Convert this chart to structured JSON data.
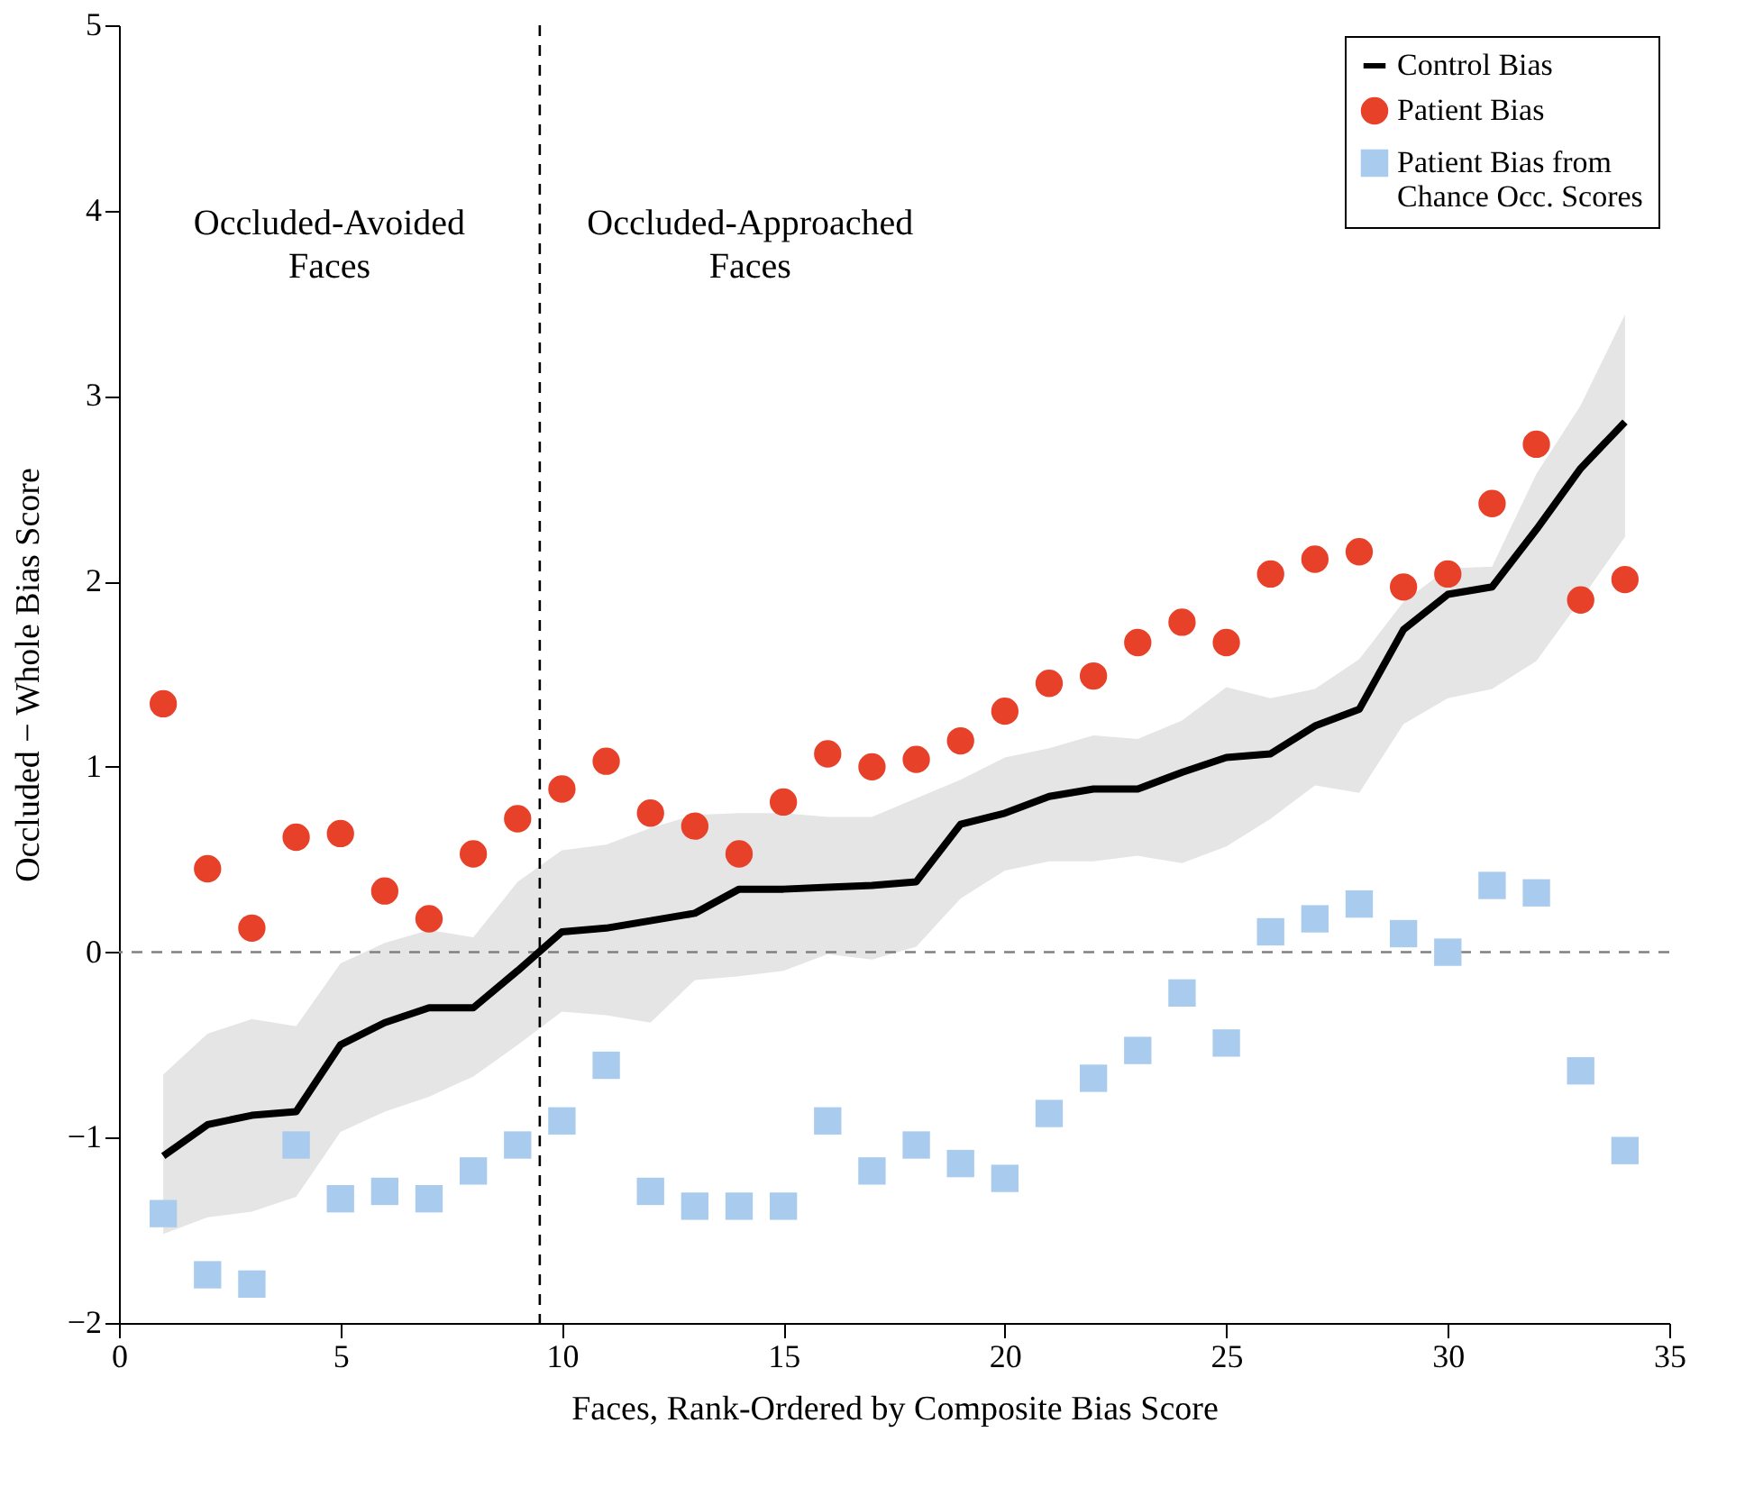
{
  "chart_data": {
    "type": "line",
    "xlabel": "Faces, Rank-Ordered by Composite Bias Score",
    "ylabel": "Occluded − Whole Bias Score",
    "x": [
      1,
      2,
      3,
      4,
      5,
      6,
      7,
      8,
      9,
      10,
      11,
      12,
      13,
      14,
      15,
      16,
      17,
      18,
      19,
      20,
      21,
      22,
      23,
      24,
      25,
      26,
      27,
      28,
      29,
      30,
      31,
      32,
      33,
      34
    ],
    "series": [
      {
        "name": "Control Bias",
        "color": "#000000",
        "values": [
          -1.1,
          -0.93,
          -0.88,
          -0.86,
          -0.5,
          -0.38,
          -0.3,
          -0.3,
          -0.1,
          0.11,
          0.13,
          0.17,
          0.21,
          0.34,
          0.34,
          0.35,
          0.36,
          0.38,
          0.69,
          0.75,
          0.84,
          0.88,
          0.88,
          0.97,
          1.05,
          1.07,
          1.22,
          1.31,
          1.74,
          1.93,
          1.97,
          2.28,
          2.61,
          2.86
        ],
        "lower": [
          -1.52,
          -1.43,
          -1.4,
          -1.32,
          -0.97,
          -0.86,
          -0.78,
          -0.67,
          -0.5,
          -0.32,
          -0.34,
          -0.38,
          -0.15,
          -0.13,
          -0.1,
          -0.01,
          -0.04,
          0.03,
          0.29,
          0.44,
          0.49,
          0.49,
          0.52,
          0.48,
          0.57,
          0.72,
          0.9,
          0.86,
          1.23,
          1.37,
          1.42,
          1.57,
          1.9,
          2.24
        ],
        "upper": [
          -0.66,
          -0.44,
          -0.36,
          -0.4,
          -0.06,
          0.05,
          0.12,
          0.08,
          0.38,
          0.55,
          0.58,
          0.67,
          0.74,
          0.75,
          0.75,
          0.73,
          0.73,
          0.83,
          0.93,
          1.05,
          1.1,
          1.17,
          1.15,
          1.25,
          1.43,
          1.37,
          1.42,
          1.58,
          1.89,
          2.07,
          2.08,
          2.58,
          2.95,
          3.44
        ]
      },
      {
        "name": "Patient Bias",
        "type": "scatter",
        "marker": "circle",
        "color": "#e8412a",
        "values": [
          1.34,
          0.45,
          0.13,
          0.62,
          0.64,
          0.33,
          0.18,
          0.53,
          0.72,
          0.88,
          1.03,
          0.75,
          0.68,
          0.53,
          0.81,
          1.07,
          1.0,
          1.04,
          1.14,
          1.3,
          1.45,
          1.49,
          1.67,
          1.78,
          1.67,
          2.04,
          2.12,
          2.16,
          1.97,
          2.04,
          2.42,
          2.74,
          1.9,
          2.01
        ]
      },
      {
        "name": "Patient Bias from Chance Occ. Scores",
        "type": "scatter",
        "marker": "square",
        "color": "#a9cbee",
        "values": [
          -1.41,
          -1.74,
          -1.79,
          -1.04,
          -1.33,
          -1.29,
          -1.33,
          -1.18,
          -1.04,
          -0.91,
          -0.61,
          -1.29,
          -1.37,
          -1.37,
          -1.37,
          -0.91,
          -1.18,
          -1.04,
          -1.14,
          -1.22,
          -0.87,
          -0.68,
          -0.53,
          -0.22,
          -0.49,
          0.11,
          0.18,
          0.26,
          0.1,
          0.0,
          0.36,
          0.32,
          -0.64,
          -1.07
        ]
      }
    ],
    "xlim": [
      0,
      35
    ],
    "xticks": [
      0,
      5,
      10,
      15,
      20,
      25,
      30,
      35
    ],
    "ylim": [
      -2,
      5
    ],
    "yticks": [
      -2,
      -1,
      0,
      1,
      2,
      3,
      4,
      5
    ],
    "ref_lines": [
      {
        "axis": "y",
        "value": 0,
        "color": "#808080",
        "line_style": "dashed"
      },
      {
        "axis": "x",
        "value": 9.5,
        "color": "#000000",
        "line_style": "dashed"
      }
    ],
    "annotations": [
      "Occluded-Avoided Faces",
      "Occluded-Approached Faces"
    ],
    "legend": "top right",
    "grid": false,
    "line_style": "solid"
  }
}
